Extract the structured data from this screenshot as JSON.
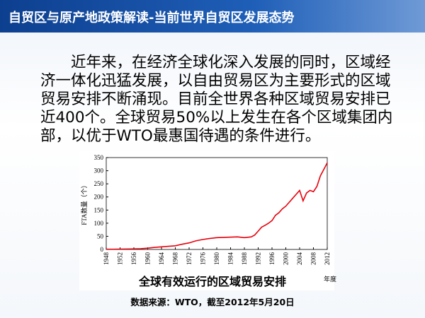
{
  "header": {
    "title": "自贸区与原产地政策解读-当前世界自贸区发展态势"
  },
  "paragraph": "近年来，在经济全球化深入发展的同时，区域经济一体化迅猛发展，以自由贸易区为主要形式的区域贸易安排不断涌现。目前全世界各种区域贸易安排已近400个。全球贸易50%以上发生在各个区域集团内部，以优于WTO最惠国待遇的条件进行。",
  "chart_data": {
    "type": "line",
    "title": "全球有效运行的区域贸易安排",
    "source": "数据来源：WTO，截至2012年5月20日",
    "y_label": "FTA数量（个）",
    "x_label": "年度",
    "x": [
      1948,
      1950,
      1955,
      1958,
      1960,
      1962,
      1964,
      1966,
      1968,
      1970,
      1972,
      1974,
      1976,
      1978,
      1980,
      1982,
      1984,
      1986,
      1988,
      1990,
      1991,
      1992,
      1993,
      1994,
      1995,
      1996,
      1997,
      1998,
      1999,
      2000,
      2001,
      2002,
      2003,
      2004,
      2005,
      2006,
      2007,
      2008,
      2009,
      2010,
      2011,
      2012
    ],
    "series": [
      {
        "name": "FTA",
        "color": "#e8000b",
        "values": [
          1,
          1,
          2,
          3,
          5,
          8,
          10,
          12,
          14,
          20,
          25,
          33,
          38,
          42,
          45,
          46,
          47,
          48,
          45,
          48,
          55,
          70,
          85,
          92,
          100,
          110,
          130,
          140,
          155,
          165,
          180,
          195,
          210,
          225,
          185,
          215,
          225,
          220,
          240,
          280,
          305,
          330
        ]
      }
    ],
    "xlim": [
      1948,
      2012
    ],
    "xticks": [
      1948,
      1952,
      1956,
      1960,
      1964,
      1968,
      1972,
      1976,
      1980,
      1984,
      1988,
      1992,
      1996,
      2000,
      2004,
      2008,
      2012
    ],
    "ylim": [
      0,
      350
    ],
    "yticks": [
      0,
      50,
      100,
      150,
      200,
      250,
      300,
      350
    ]
  }
}
